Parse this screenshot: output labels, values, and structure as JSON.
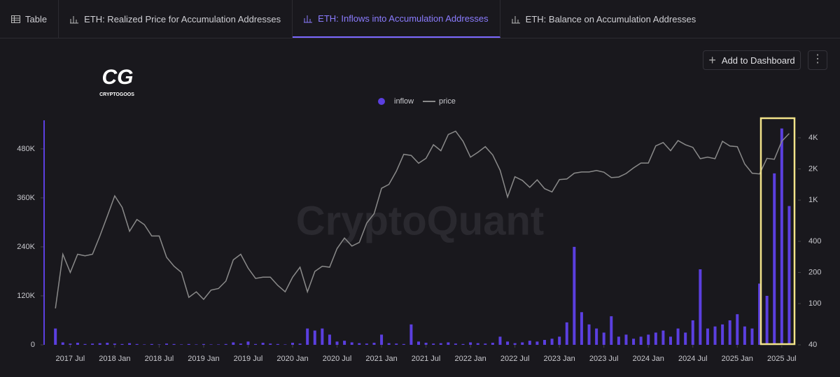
{
  "tabs": [
    "Table",
    "ETH: Realized Price for Accumulation Addresses",
    "ETH: Inflows into Accumulation Addresses",
    "ETH: Balance on Accumulation Addresses"
  ],
  "button": "Add to Dashboard",
  "logo": {
    "mark": "CG",
    "name": "CRYPTOGOOS"
  },
  "watermark": "CryptoQuant",
  "chart_data": {
    "type": "combo",
    "legend": "top",
    "x": [
      "2017-05",
      "2017-06",
      "2017-07",
      "2017-08",
      "2017-09",
      "2017-10",
      "2017-11",
      "2017-12",
      "2018-01",
      "2018-02",
      "2018-03",
      "2018-04",
      "2018-05",
      "2018-06",
      "2018-07",
      "2018-08",
      "2018-09",
      "2018-10",
      "2018-11",
      "2018-12",
      "2019-01",
      "2019-02",
      "2019-03",
      "2019-04",
      "2019-05",
      "2019-06",
      "2019-07",
      "2019-08",
      "2019-09",
      "2019-10",
      "2019-11",
      "2019-12",
      "2020-01",
      "2020-02",
      "2020-03",
      "2020-04",
      "2020-05",
      "2020-06",
      "2020-07",
      "2020-08",
      "2020-09",
      "2020-10",
      "2020-11",
      "2020-12",
      "2021-01",
      "2021-02",
      "2021-03",
      "2021-04",
      "2021-05",
      "2021-06",
      "2021-07",
      "2021-08",
      "2021-09",
      "2021-10",
      "2021-11",
      "2021-12",
      "2022-01",
      "2022-02",
      "2022-03",
      "2022-04",
      "2022-05",
      "2022-06",
      "2022-07",
      "2022-08",
      "2022-09",
      "2022-10",
      "2022-11",
      "2022-12",
      "2023-01",
      "2023-02",
      "2023-03",
      "2023-04",
      "2023-05",
      "2023-06",
      "2023-07",
      "2023-08",
      "2023-09",
      "2023-10",
      "2023-11",
      "2023-12",
      "2024-01",
      "2024-02",
      "2024-03",
      "2024-04",
      "2024-05",
      "2024-06",
      "2024-07",
      "2024-08",
      "2024-09",
      "2024-10",
      "2024-11",
      "2024-12",
      "2025-01",
      "2025-02",
      "2025-03",
      "2025-04",
      "2025-05",
      "2025-06",
      "2025-07",
      "2025-08"
    ],
    "series": [
      {
        "name": "inflow",
        "type": "bar",
        "color": "#5b3fe0",
        "values": [
          40000,
          6000,
          3000,
          5000,
          2000,
          3000,
          4000,
          5000,
          3000,
          2000,
          4000,
          2000,
          1000,
          2000,
          1000,
          3000,
          2000,
          1000,
          2000,
          1000,
          2000,
          1000,
          1000,
          2000,
          6000,
          3000,
          8000,
          2000,
          5000,
          3000,
          2000,
          1000,
          5000,
          3000,
          40000,
          35000,
          40000,
          25000,
          8000,
          10000,
          6000,
          4000,
          3000,
          5000,
          25000,
          4000,
          3000,
          2000,
          50000,
          8000,
          5000,
          3000,
          4000,
          6000,
          3000,
          2000,
          6000,
          4000,
          3000,
          5000,
          20000,
          8000,
          4000,
          6000,
          10000,
          8000,
          12000,
          15000,
          20000,
          55000,
          240000,
          80000,
          50000,
          40000,
          30000,
          70000,
          20000,
          25000,
          15000,
          20000,
          25000,
          30000,
          35000,
          20000,
          40000,
          30000,
          60000,
          185000,
          40000,
          45000,
          50000,
          60000,
          75000,
          45000,
          40000,
          150000,
          120000,
          420000,
          530000,
          340000
        ]
      },
      {
        "name": "price",
        "type": "line",
        "axis": "y2",
        "color": "#8a8a8a",
        "values": [
          90,
          300,
          200,
          300,
          290,
          300,
          450,
          700,
          1100,
          850,
          500,
          650,
          580,
          450,
          450,
          280,
          230,
          200,
          115,
          130,
          110,
          135,
          140,
          165,
          265,
          300,
          220,
          175,
          180,
          180,
          150,
          130,
          180,
          225,
          130,
          205,
          230,
          225,
          340,
          430,
          360,
          390,
          600,
          740,
          1300,
          1420,
          1900,
          2770,
          2700,
          2270,
          2530,
          3430,
          3000,
          4300,
          4630,
          3700,
          2600,
          2900,
          3280,
          2730,
          1940,
          1070,
          1680,
          1550,
          1330,
          1570,
          1290,
          1200,
          1580,
          1600,
          1820,
          1870,
          1870,
          1930,
          1860,
          1650,
          1670,
          1810,
          2050,
          2280,
          2280,
          3340,
          3600,
          3000,
          3760,
          3430,
          3230,
          2510,
          2600,
          2510,
          3700,
          3330,
          3280,
          2230,
          1820,
          1790,
          2530,
          2480,
          3700,
          4400
        ]
      }
    ],
    "xlim": [
      "2017-03",
      "2025-09"
    ],
    "xticks": [
      {
        "value": "2017-07",
        "label": "2017 Jul"
      },
      {
        "value": "2018-01",
        "label": "2018 Jan"
      },
      {
        "value": "2018-07",
        "label": "2018 Jul"
      },
      {
        "value": "2019-01",
        "label": "2019 Jan"
      },
      {
        "value": "2019-07",
        "label": "2019 Jul"
      },
      {
        "value": "2020-01",
        "label": "2020 Jan"
      },
      {
        "value": "2020-07",
        "label": "2020 Jul"
      },
      {
        "value": "2021-01",
        "label": "2021 Jan"
      },
      {
        "value": "2021-07",
        "label": "2021 Jul"
      },
      {
        "value": "2022-01",
        "label": "2022 Jan"
      },
      {
        "value": "2022-07",
        "label": "2022 Jul"
      },
      {
        "value": "2023-01",
        "label": "2023 Jan"
      },
      {
        "value": "2023-07",
        "label": "2023 Jul"
      },
      {
        "value": "2024-01",
        "label": "2024 Jan"
      },
      {
        "value": "2024-07",
        "label": "2024 Jul"
      },
      {
        "value": "2025-01",
        "label": "2025 Jan"
      },
      {
        "value": "2025-07",
        "label": "2025 Jul"
      }
    ],
    "ylim": [
      0,
      550000
    ],
    "yticks": [
      0,
      {
        "value": 120000,
        "label": "120K"
      },
      {
        "value": 240000,
        "label": "240K"
      },
      {
        "value": 360000,
        "label": "360K"
      },
      {
        "value": 480000,
        "label": "480K"
      }
    ],
    "y2lim": [
      40,
      5900
    ],
    "y2scale": "log",
    "y2ticks": [
      40,
      100,
      200,
      400,
      {
        "value": 1000,
        "label": "1K"
      },
      {
        "value": 2000,
        "label": "2K"
      },
      {
        "value": 4000,
        "label": "4K"
      }
    ],
    "grid": false
  }
}
